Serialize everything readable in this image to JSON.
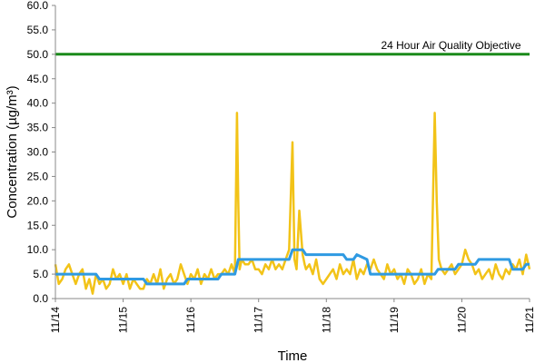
{
  "chart_data": {
    "type": "line",
    "title": "",
    "xlabel": "Time",
    "ylabel": "Concentration (µg/m³)",
    "ylim": [
      0,
      60
    ],
    "yticks": [
      "0.0",
      "5.0",
      "10.0",
      "15.0",
      "20.0",
      "25.0",
      "30.0",
      "35.0",
      "40.0",
      "45.0",
      "50.0",
      "55.0",
      "60.0"
    ],
    "xlim": [
      0,
      7
    ],
    "xticks": [
      {
        "x": 0,
        "label": "11/14"
      },
      {
        "x": 1,
        "label": "11/15"
      },
      {
        "x": 2,
        "label": "11/16"
      },
      {
        "x": 3,
        "label": "11/17"
      },
      {
        "x": 4,
        "label": "11/18"
      },
      {
        "x": 5,
        "label": "11/19"
      },
      {
        "x": 6,
        "label": "11/20"
      },
      {
        "x": 7,
        "label": "11/21"
      }
    ],
    "grid": false,
    "colors": {
      "hourly": "#f2c318",
      "rolling": "#2f9ae2",
      "objective": "#1a8a1a"
    },
    "annotations": [
      {
        "text": "24 Hour Air Quality Objective",
        "x": 6.9,
        "y": 50
      }
    ],
    "series": [
      {
        "key": "hourly",
        "x": [
          0,
          0.05,
          0.1,
          0.15,
          0.2,
          0.25,
          0.3,
          0.35,
          0.4,
          0.45,
          0.5,
          0.55,
          0.6,
          0.65,
          0.7,
          0.75,
          0.8,
          0.85,
          0.9,
          0.95,
          1,
          1.05,
          1.1,
          1.15,
          1.2,
          1.25,
          1.3,
          1.35,
          1.4,
          1.45,
          1.5,
          1.55,
          1.6,
          1.65,
          1.7,
          1.75,
          1.8,
          1.85,
          1.9,
          1.95,
          2,
          2.05,
          2.1,
          2.15,
          2.2,
          2.25,
          2.3,
          2.35,
          2.4,
          2.45,
          2.5,
          2.55,
          2.6,
          2.65,
          2.68,
          2.7,
          2.72,
          2.75,
          2.8,
          2.85,
          2.9,
          2.95,
          3,
          3.05,
          3.1,
          3.15,
          3.2,
          3.25,
          3.3,
          3.35,
          3.4,
          3.45,
          3.5,
          3.53,
          3.56,
          3.6,
          3.65,
          3.68,
          3.7,
          3.75,
          3.8,
          3.85,
          3.9,
          3.95,
          4,
          4.05,
          4.1,
          4.15,
          4.2,
          4.25,
          4.3,
          4.35,
          4.4,
          4.45,
          4.5,
          4.55,
          4.6,
          4.65,
          4.7,
          4.75,
          4.8,
          4.85,
          4.9,
          4.95,
          5,
          5.05,
          5.1,
          5.15,
          5.2,
          5.25,
          5.3,
          5.35,
          5.4,
          5.45,
          5.5,
          5.55,
          5.6,
          5.63,
          5.66,
          5.7,
          5.75,
          5.8,
          5.85,
          5.9,
          5.95,
          6,
          6.05,
          6.1,
          6.15,
          6.2,
          6.25,
          6.3,
          6.35,
          6.4,
          6.45,
          6.5,
          6.55,
          6.6,
          6.65,
          6.7,
          6.75,
          6.8,
          6.85,
          6.9,
          6.95,
          7
        ],
        "values": [
          7,
          3,
          4,
          6,
          7,
          5,
          3,
          5,
          6,
          2,
          4,
          1,
          5,
          3,
          4,
          2,
          3,
          6,
          4,
          5,
          3,
          5,
          2,
          4,
          3,
          2,
          2,
          4,
          3,
          5,
          3,
          6,
          2,
          4,
          5,
          3,
          4,
          7,
          5,
          3,
          5,
          4,
          6,
          3,
          5,
          4,
          6,
          4,
          5,
          5,
          6,
          5,
          7,
          5,
          38,
          20,
          6,
          8,
          7,
          7,
          8,
          6,
          6,
          5,
          7,
          6,
          8,
          6,
          7,
          6,
          8,
          10,
          32,
          8,
          6,
          18,
          9,
          7,
          6,
          7,
          5,
          8,
          4,
          3,
          4,
          5,
          6,
          4,
          7,
          5,
          6,
          5,
          8,
          4,
          6,
          5,
          7,
          6,
          8,
          6,
          5,
          4,
          7,
          5,
          6,
          4,
          5,
          3,
          6,
          5,
          3,
          4,
          6,
          3,
          5,
          4,
          38,
          20,
          8,
          6,
          5,
          6,
          7,
          5,
          6,
          7,
          10,
          8,
          7,
          5,
          6,
          4,
          5,
          6,
          4,
          7,
          5,
          4,
          6,
          5,
          7,
          6,
          8,
          5,
          9,
          6
        ]
      },
      {
        "key": "rolling",
        "x": [
          0,
          0.6,
          0.65,
          1.3,
          1.35,
          1.9,
          1.95,
          2.4,
          2.45,
          2.65,
          2.7,
          3.45,
          3.5,
          3.65,
          3.7,
          4.25,
          4.3,
          4.4,
          4.45,
          4.6,
          4.65,
          5.35,
          5.4,
          5.6,
          5.65,
          5.9,
          5.95,
          6.2,
          6.25,
          6.7,
          6.75,
          6.9,
          6.95,
          7
        ],
        "values": [
          5,
          5,
          4,
          4,
          3,
          3,
          4,
          4,
          5,
          5,
          8,
          8,
          10,
          10,
          9,
          9,
          8,
          8,
          9,
          8,
          5,
          5,
          5,
          5,
          6,
          6,
          7,
          7,
          8,
          8,
          6,
          6,
          7,
          7
        ]
      },
      {
        "key": "objective",
        "x": [
          0,
          7
        ],
        "values": [
          50,
          50
        ]
      }
    ]
  }
}
